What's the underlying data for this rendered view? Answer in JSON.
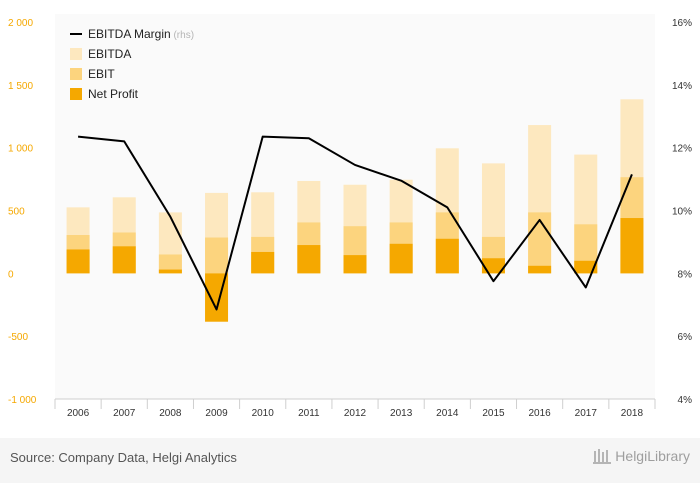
{
  "chart_data": {
    "type": "bar",
    "categories": [
      "2006",
      "2007",
      "2008",
      "2009",
      "2010",
      "2011",
      "2012",
      "2013",
      "2014",
      "2015",
      "2016",
      "2017",
      "2018"
    ],
    "series": [
      {
        "name": "EBITDA",
        "axis": "left",
        "color": "#fde8bf",
        "values": [
          525,
          605,
          485,
          640,
          645,
          735,
          705,
          745,
          995,
          875,
          1180,
          945,
          1385
        ]
      },
      {
        "name": "EBIT",
        "axis": "left",
        "color": "#fcd47e",
        "values": [
          305,
          325,
          150,
          285,
          290,
          405,
          375,
          405,
          485,
          290,
          485,
          390,
          765
        ]
      },
      {
        "name": "Net Profit",
        "axis": "left",
        "color": "#f5a800",
        "values": [
          190,
          215,
          30,
          -385,
          170,
          225,
          145,
          235,
          275,
          120,
          60,
          100,
          440
        ]
      },
      {
        "name": "EBITDA Margin",
        "name_suffix": "(rhs)",
        "axis": "right",
        "type": "line",
        "color": "#000000",
        "values": [
          12.35,
          12.2,
          9.8,
          6.85,
          12.35,
          12.3,
          11.45,
          10.95,
          10.1,
          7.75,
          9.7,
          7.55,
          11.15
        ]
      }
    ],
    "left_axis": {
      "min": -1000,
      "max": 2000,
      "ticks": [
        -1000,
        -500,
        0,
        500,
        1000,
        1500,
        2000
      ],
      "tick_labels": [
        "-1 000",
        "-500",
        "0",
        "500",
        "1 000",
        "1 500",
        "2 000"
      ],
      "color": "#f5a800"
    },
    "right_axis": {
      "min": 4,
      "max": 16,
      "ticks": [
        4,
        6,
        8,
        10,
        12,
        14,
        16
      ],
      "tick_labels": [
        "4%",
        "6%",
        "8%",
        "10%",
        "12%",
        "14%",
        "16%"
      ]
    },
    "legend_order": [
      "EBITDA Margin",
      "EBITDA",
      "EBIT",
      "Net Profit"
    ],
    "legend_position": "top-left",
    "grid": false
  },
  "footer": {
    "source": "Source: Company Data, Helgi Analytics",
    "logo_text": "HelgiLibrary"
  }
}
